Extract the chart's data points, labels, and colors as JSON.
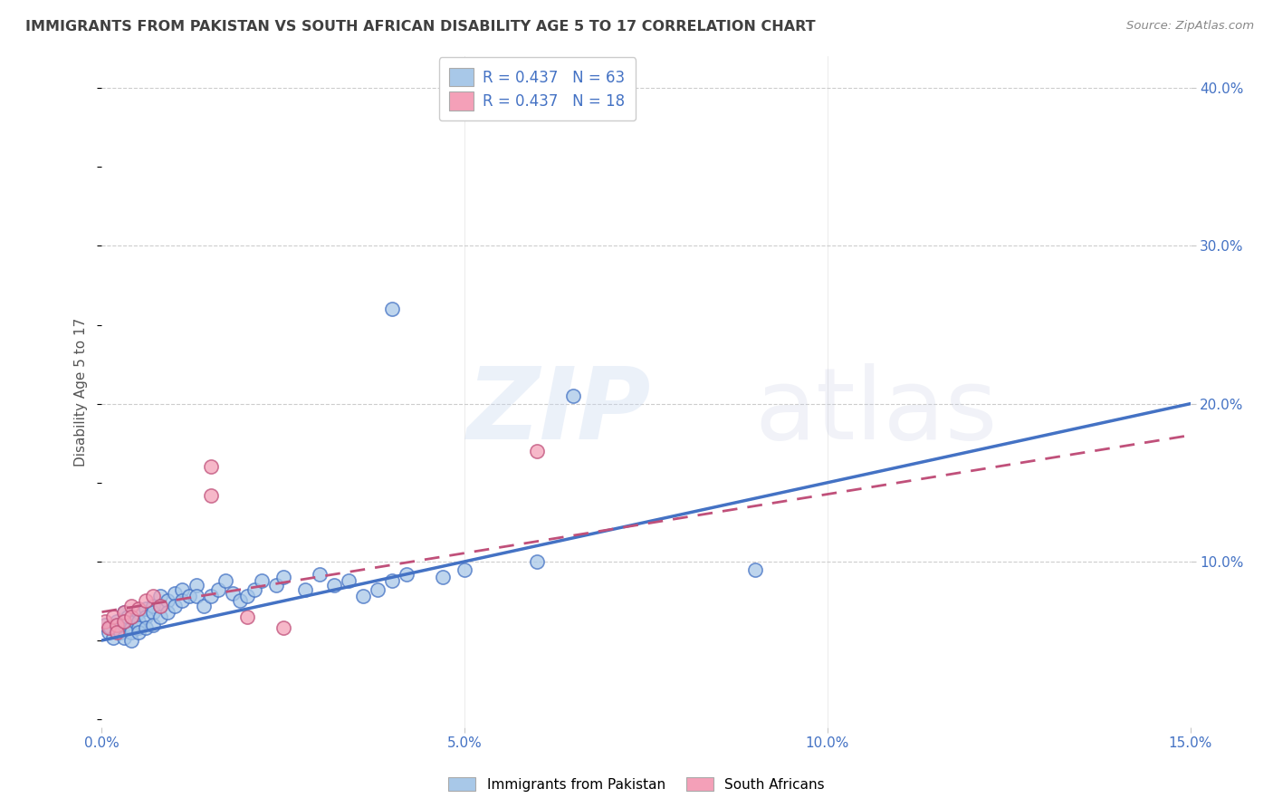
{
  "title": "IMMIGRANTS FROM PAKISTAN VS SOUTH AFRICAN DISABILITY AGE 5 TO 17 CORRELATION CHART",
  "source": "Source: ZipAtlas.com",
  "ylabel": "Disability Age 5 to 17",
  "xmin": 0.0,
  "xmax": 0.15,
  "ymin": -0.005,
  "ymax": 0.42,
  "color_pakistan": "#A8C8E8",
  "color_southafrica": "#F4A0B8",
  "color_line_pakistan": "#4472C4",
  "color_line_southafrica": "#C0507A",
  "color_title": "#404040",
  "color_source": "#888888",
  "color_axis_labels": "#4472C4",
  "background_color": "#FFFFFF",
  "grid_color": "#C8C8C8",
  "pakistan_x": [
    0.0005,
    0.001,
    0.0012,
    0.0015,
    0.002,
    0.002,
    0.0022,
    0.0025,
    0.003,
    0.003,
    0.003,
    0.0035,
    0.004,
    0.004,
    0.004,
    0.0045,
    0.005,
    0.005,
    0.005,
    0.005,
    0.006,
    0.006,
    0.006,
    0.007,
    0.007,
    0.007,
    0.008,
    0.008,
    0.008,
    0.009,
    0.009,
    0.01,
    0.01,
    0.011,
    0.011,
    0.012,
    0.013,
    0.013,
    0.014,
    0.015,
    0.016,
    0.017,
    0.018,
    0.019,
    0.02,
    0.021,
    0.022,
    0.024,
    0.025,
    0.028,
    0.03,
    0.032,
    0.034,
    0.036,
    0.038,
    0.04,
    0.042,
    0.047,
    0.05,
    0.06,
    0.065,
    0.09,
    0.04
  ],
  "pakistan_y": [
    0.06,
    0.055,
    0.058,
    0.052,
    0.062,
    0.058,
    0.06,
    0.055,
    0.068,
    0.06,
    0.052,
    0.065,
    0.058,
    0.055,
    0.05,
    0.062,
    0.068,
    0.062,
    0.058,
    0.055,
    0.07,
    0.065,
    0.058,
    0.072,
    0.068,
    0.06,
    0.078,
    0.072,
    0.065,
    0.075,
    0.068,
    0.08,
    0.072,
    0.082,
    0.075,
    0.078,
    0.085,
    0.078,
    0.072,
    0.078,
    0.082,
    0.088,
    0.08,
    0.075,
    0.078,
    0.082,
    0.088,
    0.085,
    0.09,
    0.082,
    0.092,
    0.085,
    0.088,
    0.078,
    0.082,
    0.088,
    0.092,
    0.09,
    0.095,
    0.1,
    0.205,
    0.095,
    0.26
  ],
  "southafrica_x": [
    0.0005,
    0.001,
    0.0015,
    0.002,
    0.002,
    0.003,
    0.003,
    0.004,
    0.004,
    0.005,
    0.006,
    0.007,
    0.008,
    0.015,
    0.02,
    0.025,
    0.06,
    0.015
  ],
  "southafrica_y": [
    0.062,
    0.058,
    0.065,
    0.06,
    0.055,
    0.068,
    0.062,
    0.072,
    0.065,
    0.07,
    0.075,
    0.078,
    0.072,
    0.16,
    0.065,
    0.058,
    0.17,
    0.142
  ],
  "pk_line_x0": 0.0,
  "pk_line_x1": 0.15,
  "pk_line_y0": 0.05,
  "pk_line_y1": 0.2,
  "sa_line_x0": 0.0,
  "sa_line_x1": 0.15,
  "sa_line_y0": 0.068,
  "sa_line_y1": 0.18,
  "legend_label_pakistan": "Immigrants from Pakistan",
  "legend_label_southafrica": "South Africans",
  "legend_r1": "R = 0.437",
  "legend_n1": "N = 63",
  "legend_r2": "R = 0.437",
  "legend_n2": "N = 18"
}
